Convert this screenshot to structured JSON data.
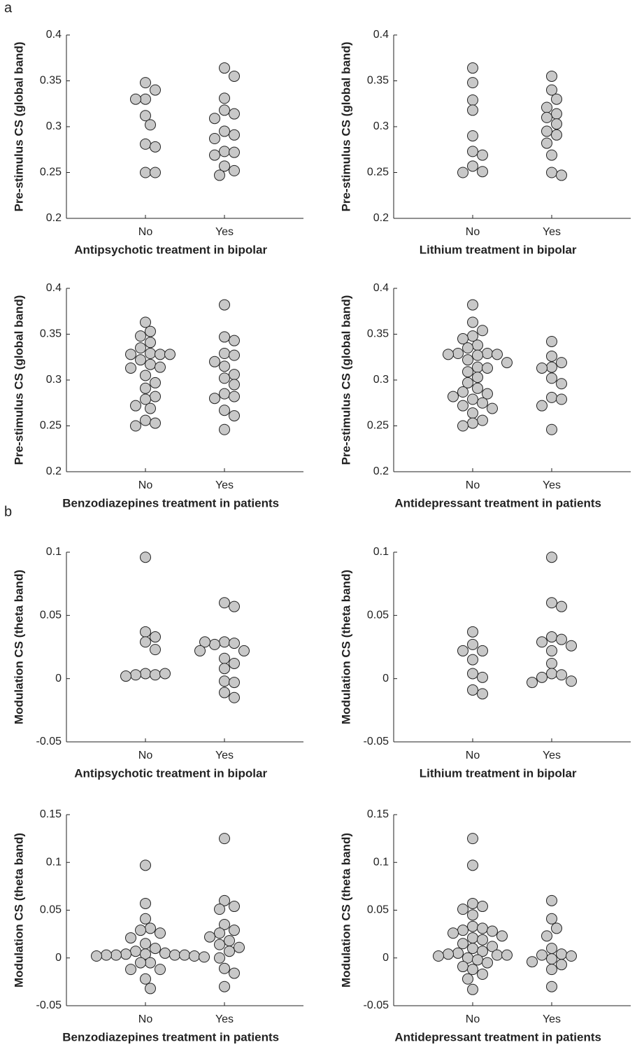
{
  "panel_labels": [
    "a",
    "b"
  ],
  "chart_data": [
    {
      "type": "scatter",
      "ylabel": "Pre-stimulus CS (global band)",
      "xlabel": "Antipsychotic treatment in bipolar",
      "categories": [
        "No",
        "Yes"
      ],
      "color": "#c8c8c8",
      "values": [
        [
          0.348,
          0.34,
          0.33,
          0.33,
          0.312,
          0.302,
          0.281,
          0.278,
          0.25,
          0.25
        ],
        [
          0.364,
          0.355,
          0.331,
          0.318,
          0.314,
          0.309,
          0.295,
          0.291,
          0.287,
          0.273,
          0.272,
          0.269,
          0.257,
          0.252,
          0.247
        ]
      ],
      "ylim": [
        0.2,
        0.4
      ],
      "yticks": [
        0.2,
        0.25,
        0.3,
        0.35,
        0.4
      ]
    },
    {
      "type": "scatter",
      "ylabel": "Pre-stimulus CS (global band)",
      "xlabel": "Lithium treatment in bipolar",
      "categories": [
        "No",
        "Yes"
      ],
      "color": "#c8c8c8",
      "values": [
        [
          0.364,
          0.348,
          0.329,
          0.318,
          0.29,
          0.273,
          0.269,
          0.257,
          0.251,
          0.25
        ],
        [
          0.355,
          0.34,
          0.33,
          0.321,
          0.314,
          0.31,
          0.303,
          0.295,
          0.291,
          0.282,
          0.269,
          0.25,
          0.247
        ]
      ],
      "ylim": [
        0.2,
        0.4
      ],
      "yticks": [
        0.2,
        0.25,
        0.3,
        0.35,
        0.4
      ]
    },
    {
      "type": "scatter",
      "ylabel": "Pre-stimulus CS (global band)",
      "xlabel": "Benzodiazepines treatment in patients",
      "categories": [
        "No",
        "Yes"
      ],
      "color": "#c8c8c8",
      "values": [
        [
          0.363,
          0.353,
          0.348,
          0.341,
          0.335,
          0.329,
          0.328,
          0.328,
          0.328,
          0.322,
          0.317,
          0.314,
          0.313,
          0.305,
          0.297,
          0.291,
          0.282,
          0.279,
          0.272,
          0.269,
          0.256,
          0.253,
          0.25
        ],
        [
          0.382,
          0.347,
          0.343,
          0.329,
          0.327,
          0.32,
          0.315,
          0.306,
          0.302,
          0.295,
          0.285,
          0.282,
          0.28,
          0.267,
          0.261,
          0.246
        ]
      ],
      "ylim": [
        0.2,
        0.4
      ],
      "yticks": [
        0.2,
        0.25,
        0.3,
        0.35,
        0.4
      ]
    },
    {
      "type": "scatter",
      "ylabel": "Pre-stimulus CS (global band)",
      "xlabel": "Antidepressant treatment in patients",
      "categories": [
        "No",
        "Yes"
      ],
      "color": "#c8c8c8",
      "values": [
        [
          0.382,
          0.363,
          0.354,
          0.348,
          0.345,
          0.338,
          0.335,
          0.329,
          0.329,
          0.328,
          0.328,
          0.327,
          0.322,
          0.319,
          0.314,
          0.313,
          0.309,
          0.303,
          0.297,
          0.291,
          0.287,
          0.285,
          0.282,
          0.279,
          0.275,
          0.272,
          0.269,
          0.264,
          0.256,
          0.253,
          0.25
        ],
        [
          0.342,
          0.326,
          0.319,
          0.314,
          0.313,
          0.302,
          0.296,
          0.281,
          0.279,
          0.272,
          0.246
        ]
      ],
      "ylim": [
        0.2,
        0.4
      ],
      "yticks": [
        0.2,
        0.25,
        0.3,
        0.35,
        0.4
      ]
    },
    {
      "type": "scatter",
      "ylabel": "Modulation CS (theta band)",
      "xlabel": "Antipsychotic treatment in bipolar",
      "categories": [
        "No",
        "Yes"
      ],
      "color": "#c8c8c8",
      "values": [
        [
          0.096,
          0.037,
          0.033,
          0.029,
          0.023,
          0.004,
          0.003,
          0.003,
          0.004,
          0.002
        ],
        [
          0.06,
          0.057,
          0.029,
          0.028,
          0.027,
          0.022,
          0.016,
          0.012,
          0.008,
          -0.002,
          -0.003,
          -0.011,
          -0.015,
          0.029,
          0.022
        ]
      ],
      "ylim": [
        -0.05,
        0.1
      ],
      "yticks": [
        -0.05,
        0,
        0.05,
        0.1
      ]
    },
    {
      "type": "scatter",
      "ylabel": "Modulation CS (theta band)",
      "xlabel": "Lithium treatment in bipolar",
      "categories": [
        "No",
        "Yes"
      ],
      "color": "#c8c8c8",
      "values": [
        [
          0.037,
          0.027,
          0.022,
          0.015,
          0.004,
          0.001,
          -0.009,
          -0.012,
          0.022
        ],
        [
          0.096,
          0.06,
          0.057,
          0.033,
          0.031,
          0.029,
          0.026,
          0.022,
          0.012,
          0.004,
          0.003,
          0.001,
          -0.002,
          -0.003
        ]
      ],
      "ylim": [
        -0.05,
        0.1
      ],
      "yticks": [
        -0.05,
        0,
        0.05,
        0.1
      ]
    },
    {
      "type": "scatter",
      "ylabel": "Modulation CS (theta band)",
      "xlabel": "Benzodiazepines treatment in patients",
      "categories": [
        "No",
        "Yes"
      ],
      "color": "#c8c8c8",
      "values": [
        [
          0.097,
          0.057,
          0.041,
          0.031,
          0.029,
          0.026,
          0.021,
          0.015,
          0.01,
          0.007,
          0.005,
          0.004,
          0.004,
          0.003,
          0.003,
          0.003,
          0.003,
          0.002,
          0.002,
          0.001,
          -0.005,
          -0.005,
          -0.012,
          -0.012,
          -0.022,
          -0.032
        ],
        [
          0.125,
          0.06,
          0.054,
          0.051,
          0.035,
          0.029,
          0.026,
          0.022,
          0.018,
          0.014,
          0.011,
          0.007,
          0.0,
          -0.011,
          -0.016,
          -0.03
        ]
      ],
      "ylim": [
        -0.05,
        0.15
      ],
      "yticks": [
        -0.05,
        0,
        0.05,
        0.1,
        0.15
      ]
    },
    {
      "type": "scatter",
      "ylabel": "Modulation CS (theta band)",
      "xlabel": "Antidepressant treatment in patients",
      "categories": [
        "No",
        "Yes"
      ],
      "color": "#c8c8c8",
      "values": [
        [
          0.125,
          0.097,
          0.057,
          0.054,
          0.051,
          0.045,
          0.033,
          0.031,
          0.029,
          0.028,
          0.026,
          0.023,
          0.021,
          0.019,
          0.015,
          0.012,
          0.01,
          0.007,
          0.005,
          0.004,
          0.003,
          0.003,
          0.002,
          0.0,
          -0.002,
          -0.005,
          -0.009,
          -0.012,
          -0.017,
          -0.022,
          -0.033
        ],
        [
          0.06,
          0.041,
          0.031,
          0.023,
          0.01,
          0.004,
          0.003,
          0.002,
          -0.001,
          -0.004,
          -0.007,
          -0.012,
          -0.03
        ]
      ],
      "ylim": [
        -0.05,
        0.15
      ],
      "yticks": [
        -0.05,
        0,
        0.05,
        0.1,
        0.15
      ]
    }
  ]
}
